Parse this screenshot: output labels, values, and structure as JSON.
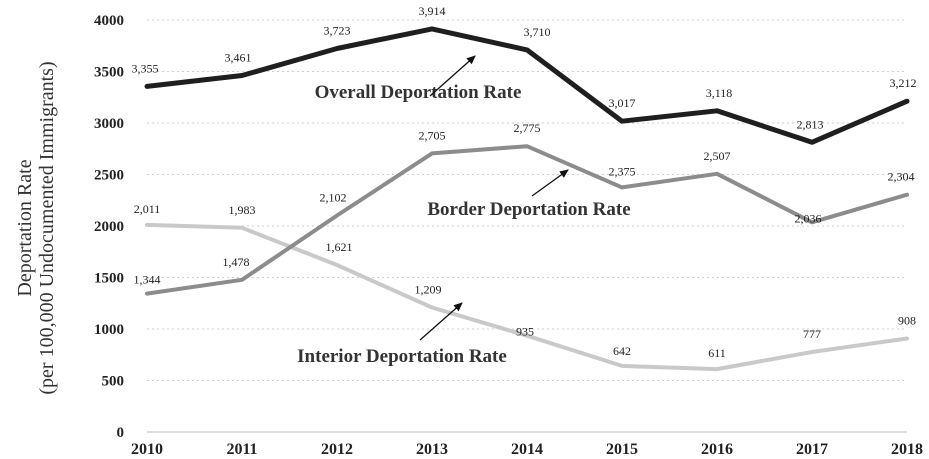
{
  "chart_data": {
    "type": "line",
    "x": [
      "2010",
      "2011",
      "2012",
      "2013",
      "2014",
      "2015",
      "2016",
      "2017",
      "2018"
    ],
    "ylim": [
      0,
      4000
    ],
    "yticks": [
      "0",
      "500",
      "1000",
      "1500",
      "2000",
      "2500",
      "3000",
      "3500",
      "4000"
    ],
    "ylabel_line1": "Deportation Rate",
    "ylabel_line2": "(per 100,000 Undocumented Immigrants)",
    "grid": true,
    "series": [
      {
        "name": "Overall Deportation Rate",
        "color": "#1f1f1f",
        "values": [
          3355,
          3461,
          3723,
          3914,
          3710,
          3017,
          3118,
          2813,
          3212
        ],
        "labels": [
          "3,355",
          "3,461",
          "3,723",
          "3,914",
          "3,710",
          "3,017",
          "3,118",
          "2,813",
          "3,212"
        ]
      },
      {
        "name": "Border Deportation Rate",
        "color": "#8c8c8c",
        "values": [
          1344,
          1478,
          2102,
          2705,
          2775,
          2375,
          2507,
          2036,
          2304
        ],
        "labels": [
          "1,344",
          "1,478",
          "2,102",
          "2,705",
          "2,775",
          "2,375",
          "2,507",
          "2,036",
          "2,304"
        ]
      },
      {
        "name": "Interior Deportation Rate",
        "color": "#c9c9c9",
        "values": [
          2011,
          1983,
          1621,
          1209,
          935,
          642,
          611,
          777,
          908
        ],
        "labels": [
          "2,011",
          "1,983",
          "1,621",
          "1,209",
          "935",
          "642",
          "611",
          "777",
          "908"
        ]
      }
    ]
  }
}
